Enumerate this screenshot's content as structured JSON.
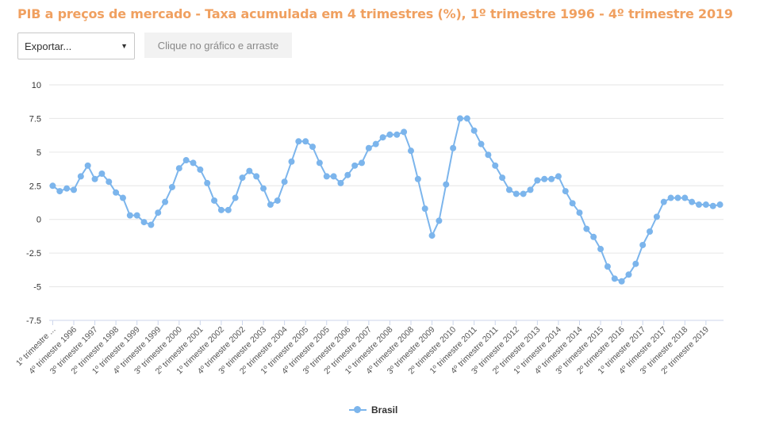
{
  "header": {
    "title": "PIB a preços de mercado - Taxa acumulada em 4 trimestres (%), 1º trimestre 1996 - 4º trimestre 2019"
  },
  "controls": {
    "export_label": "Exportar...",
    "drag_hint": "Clique no gráfico e arraste"
  },
  "colors": {
    "title": "#f0a060",
    "series": "#7cb5ec",
    "grid": "#e6e6e6"
  },
  "chart_data": {
    "type": "line",
    "title": "PIB a preços de mercado - Taxa acumulada em 4 trimestres (%), 1º trimestre 1996 - 4º trimestre 2019",
    "xlabel": "",
    "ylabel": "",
    "ylim": [
      -7.5,
      10
    ],
    "yticks": [
      "10",
      "7.5",
      "5",
      "2.5",
      "0",
      "-2.5",
      "-5",
      "-7.5"
    ],
    "grid": true,
    "legend_position": "bottom-center",
    "x_tick_labels": [
      "1º trimestre ...",
      "4º trimestre 1996",
      "3º trimestre 1997",
      "2º trimestre 1998",
      "1º trimestre 1999",
      "4º trimestre 1999",
      "3º trimestre 2000",
      "2º trimestre 2001",
      "1º trimestre 2002",
      "4º trimestre 2002",
      "3º trimestre 2003",
      "2º trimestre 2004",
      "1º trimestre 2005",
      "4º trimestre 2005",
      "3º trimestre 2006",
      "2º trimestre 2007",
      "1º trimestre 2008",
      "4º trimestre 2008",
      "3º trimestre 2009",
      "2º trimestre 2010",
      "1º trimestre 2011",
      "4º trimestre 2011",
      "3º trimestre 2012",
      "2º trimestre 2013",
      "1º trimestre 2014",
      "4º trimestre 2014",
      "3º trimestre 2015",
      "2º trimestre 2016",
      "1º trimestre 2017",
      "4º trimestre 2017",
      "3º trimestre 2018",
      "2º trimestre 2019"
    ],
    "series": [
      {
        "name": "Brasil",
        "values": [
          2.5,
          2.1,
          2.3,
          2.2,
          3.2,
          4.0,
          3.0,
          3.4,
          2.8,
          2.0,
          1.6,
          0.3,
          0.3,
          -0.2,
          -0.4,
          0.5,
          1.3,
          2.4,
          3.8,
          4.4,
          4.2,
          3.7,
          2.7,
          1.4,
          0.7,
          0.7,
          1.6,
          3.1,
          3.6,
          3.2,
          2.3,
          1.1,
          1.4,
          2.8,
          4.3,
          5.8,
          5.8,
          5.4,
          4.2,
          3.2,
          3.2,
          2.7,
          3.3,
          4.0,
          4.2,
          5.3,
          5.6,
          6.1,
          6.3,
          6.3,
          6.5,
          5.1,
          3.0,
          0.8,
          -1.2,
          -0.1,
          2.6,
          5.3,
          7.5,
          7.5,
          6.6,
          5.6,
          4.8,
          4.0,
          3.1,
          2.2,
          1.9,
          1.9,
          2.2,
          2.9,
          3.0,
          3.0,
          3.2,
          2.1,
          1.2,
          0.5,
          -0.7,
          -1.3,
          -2.2,
          -3.5,
          -4.4,
          -4.6,
          -4.1,
          -3.3,
          -1.9,
          -0.9,
          0.2,
          1.3,
          1.6,
          1.6,
          1.6,
          1.3,
          1.1,
          1.1,
          1.0,
          1.1
        ]
      }
    ]
  }
}
